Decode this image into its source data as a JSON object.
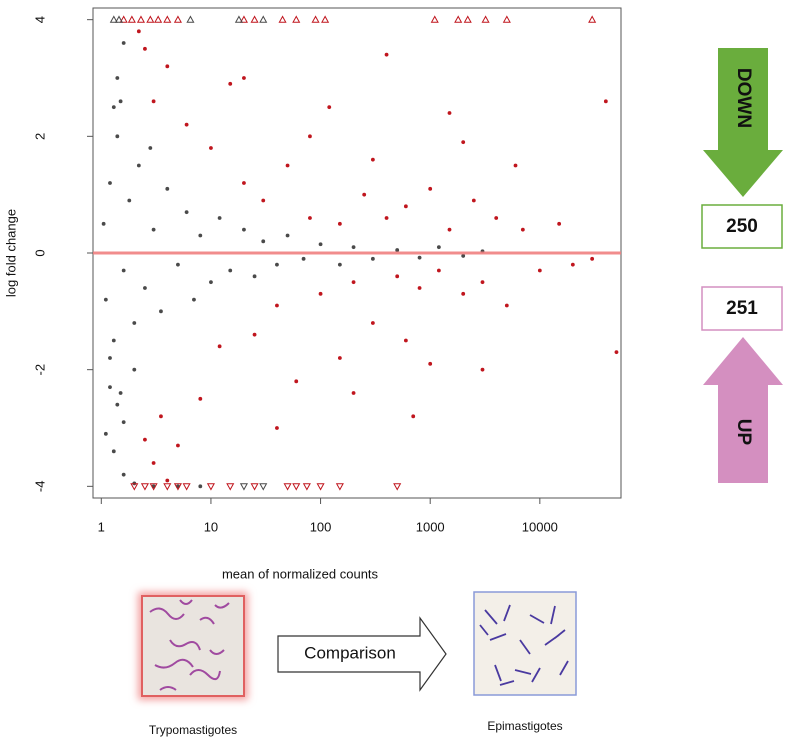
{
  "chart_data": {
    "type": "scatter",
    "xlabel": "mean of normalized counts",
    "ylabel": "log fold change",
    "log_x": true,
    "xlim": [
      0.84,
      55000
    ],
    "ylim": [
      -4.2,
      4.2
    ],
    "xticks": [
      1,
      10,
      100,
      1000,
      10000
    ],
    "yticks": [
      -4,
      -2,
      0,
      2,
      4
    ],
    "hline": {
      "value": 0,
      "color": "#f08080"
    },
    "series": [
      {
        "color": "#4a4a4a",
        "marker": "circle",
        "x": [
          1.05,
          1.1,
          1.2,
          1.3,
          1.4,
          1.5,
          1.6,
          1.8,
          2,
          2.2,
          2.5,
          3,
          3.5,
          4,
          5,
          6,
          7,
          8,
          10,
          12,
          15,
          20,
          25,
          30,
          40,
          50,
          70,
          100,
          150,
          200,
          300,
          500,
          800,
          1200,
          2000,
          3000,
          1.2,
          1.4,
          1.6,
          1.1,
          1.3,
          1.6,
          2,
          1.3,
          1.4,
          1.6,
          3,
          5,
          8,
          1.2,
          2,
          2.8,
          1.5
        ],
        "values": [
          0.5,
          -0.8,
          1.2,
          -1.5,
          2.0,
          2.6,
          -0.3,
          0.9,
          -1.2,
          1.5,
          -0.6,
          0.4,
          -1.0,
          1.1,
          -0.2,
          0.7,
          -0.8,
          0.3,
          -0.5,
          0.6,
          -0.3,
          0.4,
          -0.4,
          0.2,
          -0.2,
          0.3,
          -0.1,
          0.15,
          -0.2,
          0.1,
          -0.1,
          0.05,
          -0.08,
          0.1,
          -0.05,
          0.03,
          -2.3,
          -2.6,
          -2.9,
          -3.1,
          -3.4,
          -3.8,
          -3.95,
          2.5,
          3.0,
          3.6,
          -4,
          -4,
          -4,
          -1.8,
          -2.0,
          1.8,
          -2.4
        ]
      },
      {
        "color": "#c0161e",
        "marker": "circle",
        "x": [
          2.2,
          2.5,
          3,
          3.5,
          4,
          5,
          6,
          8,
          10,
          12,
          15,
          20,
          25,
          30,
          40,
          50,
          60,
          80,
          100,
          120,
          150,
          200,
          250,
          300,
          400,
          500,
          600,
          800,
          1000,
          1200,
          1500,
          2000,
          2500,
          3000,
          4000,
          5000,
          7000,
          10000,
          15000,
          20000,
          30000,
          40000,
          50000,
          20,
          40,
          80,
          200,
          400,
          700,
          1500,
          3000,
          6000,
          300,
          600,
          150,
          1000,
          2000,
          3,
          2.5,
          4
        ],
        "values": [
          3.8,
          3.5,
          2.6,
          -2.8,
          3.2,
          -3.3,
          2.2,
          -2.5,
          1.8,
          -1.6,
          2.9,
          1.2,
          -1.4,
          0.9,
          -0.9,
          1.5,
          -2.2,
          0.6,
          -0.7,
          2.5,
          0.5,
          -0.5,
          1.0,
          -1.2,
          0.6,
          -0.4,
          0.8,
          -0.6,
          1.1,
          -0.3,
          0.4,
          -0.7,
          0.9,
          -0.5,
          0.6,
          -0.9,
          0.4,
          -0.3,
          0.5,
          -0.2,
          -0.1,
          2.6,
          -1.7,
          3.0,
          -3.0,
          2.0,
          -2.4,
          3.4,
          -2.8,
          2.4,
          -2.0,
          1.5,
          1.6,
          -1.5,
          -1.8,
          -1.9,
          1.9,
          -3.6,
          -3.2,
          -3.9
        ]
      },
      {
        "color": "#c0161e",
        "marker": "triangle-up",
        "x": [
          1.6,
          1.9,
          2.3,
          2.8,
          3.3,
          4,
          5,
          20,
          25,
          45,
          60,
          90,
          110,
          1100,
          1800,
          2200,
          3200,
          5000,
          30000
        ],
        "values": [
          4,
          4,
          4,
          4,
          4,
          4,
          4,
          4,
          4,
          4,
          4,
          4,
          4,
          4,
          4,
          4,
          4,
          4,
          4
        ]
      },
      {
        "color": "#4a4a4a",
        "marker": "triangle-up",
        "x": [
          1.3,
          1.45,
          6.5,
          18,
          30
        ],
        "values": [
          4,
          4,
          4,
          4,
          4
        ]
      },
      {
        "color": "#c0161e",
        "marker": "triangle-down",
        "x": [
          2,
          2.5,
          3,
          4,
          5,
          6,
          10,
          15,
          25,
          50,
          60,
          75,
          100,
          150,
          500
        ],
        "values": [
          -4,
          -4,
          -4,
          -4,
          -4,
          -4,
          -4,
          -4,
          -4,
          -4,
          -4,
          -4,
          -4,
          -4,
          -4
        ]
      },
      {
        "color": "#4a4a4a",
        "marker": "triangle-down",
        "x": [
          20,
          30
        ],
        "values": [
          -4,
          -4
        ]
      }
    ]
  },
  "panel": {
    "down_label": "DOWN",
    "down_count": 250,
    "up_count": 251,
    "up_label": "UP"
  },
  "images": {
    "left_caption": "Trypomastigotes",
    "arrow_label": "Comparison",
    "right_caption": "Epimastigotes"
  }
}
